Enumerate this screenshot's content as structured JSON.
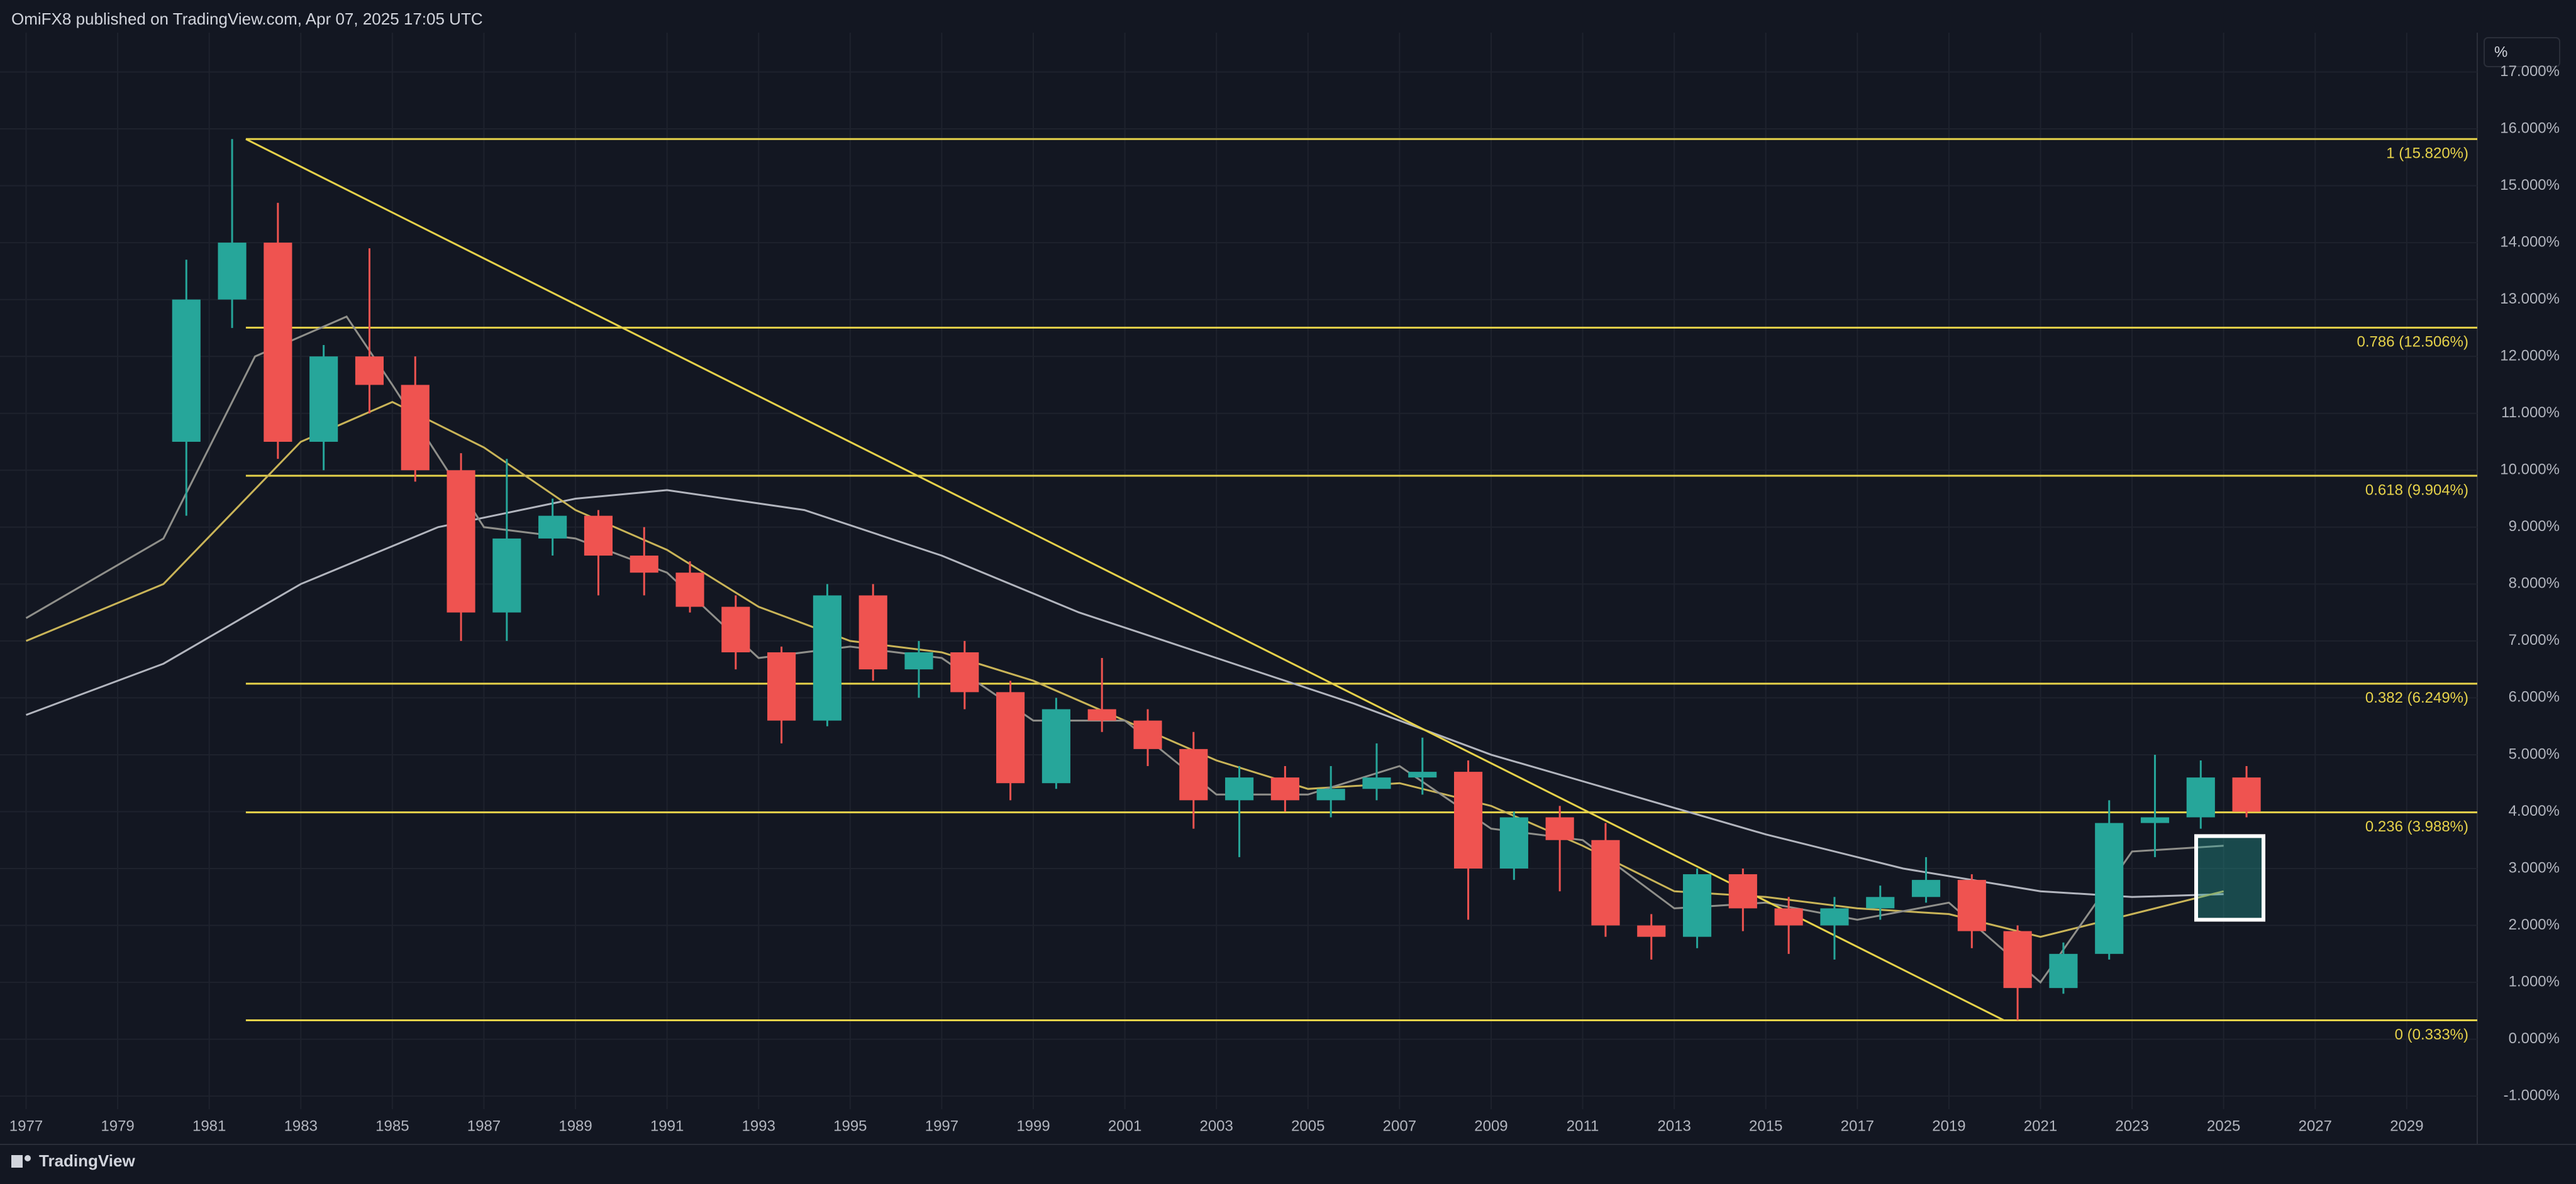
{
  "header": {
    "text": "OmiFX8 published on TradingView.com, Apr 07, 2025 17:05 UTC"
  },
  "footer": {
    "text": "TradingView"
  },
  "chart_data": {
    "type": "candlestick",
    "unit": "%",
    "up_color": "#26a69a",
    "down_color": "#ef5350",
    "x": [
      1980,
      1981,
      1982,
      1983,
      1984,
      1985,
      1986,
      1987,
      1988,
      1989,
      1990,
      1991,
      1992,
      1993,
      1994,
      1995,
      1996,
      1997,
      1998,
      1999,
      2000,
      2001,
      2002,
      2003,
      2004,
      2005,
      2006,
      2007,
      2008,
      2009,
      2010,
      2011,
      2012,
      2013,
      2014,
      2015,
      2016,
      2017,
      2018,
      2019,
      2020,
      2021,
      2022,
      2023,
      2024,
      2025
    ],
    "open": [
      10.5,
      13,
      14,
      10.5,
      12,
      11.5,
      10,
      7.5,
      8.8,
      9.2,
      8.5,
      8.2,
      7.6,
      6.8,
      5.6,
      7.8,
      6.5,
      6.8,
      6.1,
      4.5,
      5.8,
      5.6,
      5.1,
      4.2,
      4.6,
      4.2,
      4.4,
      4.6,
      4.7,
      3.0,
      3.9,
      3.5,
      2.0,
      1.8,
      2.9,
      2.3,
      2.0,
      2.3,
      2.5,
      2.8,
      1.9,
      0.9,
      1.5,
      3.8,
      3.9,
      4.6
    ],
    "high": [
      13.7,
      15.82,
      14.7,
      12.2,
      13.9,
      12,
      10.3,
      10.2,
      9.5,
      9.3,
      9,
      8.4,
      7.8,
      6.9,
      8,
      8,
      7,
      7,
      6.3,
      6,
      6.7,
      5.8,
      5.4,
      4.8,
      4.8,
      4.8,
      5.2,
      5.3,
      4.9,
      4.0,
      4.1,
      3.8,
      2.2,
      3.0,
      3.0,
      2.5,
      2.5,
      2.7,
      3.2,
      2.9,
      2.0,
      1.7,
      4.2,
      5.0,
      4.9,
      4.8
    ],
    "low": [
      9.2,
      12.5,
      10.2,
      10,
      11,
      9.8,
      7,
      7,
      8.5,
      7.8,
      7.8,
      7.5,
      6.5,
      5.2,
      5.5,
      6.3,
      6,
      5.8,
      4.2,
      4.4,
      5.4,
      4.8,
      3.7,
      3.2,
      4,
      3.9,
      4.2,
      4.3,
      2.1,
      2.8,
      2.6,
      1.8,
      1.4,
      1.6,
      1.9,
      1.5,
      1.4,
      2.1,
      2.4,
      1.6,
      0.333,
      0.8,
      1.4,
      3.2,
      3.7,
      3.9
    ],
    "close": [
      13,
      14,
      10.5,
      12,
      11.5,
      10,
      7.5,
      8.8,
      9.2,
      8.5,
      8.2,
      7.6,
      6.8,
      5.6,
      7.8,
      6.5,
      6.8,
      6.1,
      4.5,
      5.8,
      5.6,
      5.1,
      4.2,
      4.6,
      4.2,
      4.4,
      4.6,
      4.7,
      3.0,
      3.9,
      3.5,
      2.0,
      1.8,
      2.9,
      2.3,
      2.0,
      2.3,
      2.5,
      2.8,
      1.9,
      0.9,
      1.5,
      3.8,
      3.9,
      4.6,
      4.0
    ],
    "series": [
      {
        "color": "#b2b5be",
        "x": [
          1977,
          1980,
          1983,
          1986,
          1989,
          1991,
          1994,
          1997,
          2000,
          2003,
          2006,
          2009,
          2012,
          2015,
          2018,
          2021,
          2023,
          2025
        ],
        "values": [
          5.7,
          6.6,
          8.0,
          9.0,
          9.5,
          9.65,
          9.3,
          8.5,
          7.5,
          6.7,
          5.9,
          5.0,
          4.3,
          3.6,
          3.0,
          2.6,
          2.5,
          2.55
        ]
      },
      {
        "color": "#c9b458",
        "x": [
          1977,
          1980,
          1983,
          1985,
          1987,
          1989,
          1991,
          1993,
          1995,
          1997,
          1999,
          2001,
          2003,
          2005,
          2007,
          2009,
          2011,
          2013,
          2015,
          2017,
          2019,
          2021,
          2023,
          2025
        ],
        "values": [
          7.0,
          8.0,
          10.5,
          11.2,
          10.4,
          9.3,
          8.6,
          7.6,
          7.0,
          6.8,
          6.3,
          5.6,
          4.9,
          4.4,
          4.5,
          4.1,
          3.4,
          2.6,
          2.5,
          2.3,
          2.2,
          1.8,
          2.2,
          2.6
        ]
      },
      {
        "color": "#8f8f8a",
        "x": [
          1977,
          1980,
          1982,
          1984,
          1985,
          1987,
          1989,
          1991,
          1993,
          1995,
          1997,
          1999,
          2001,
          2003,
          2005,
          2007,
          2009,
          2011,
          2013,
          2015,
          2017,
          2019,
          2021,
          2023,
          2025
        ],
        "values": [
          7.4,
          8.8,
          12,
          12.7,
          11.5,
          9,
          8.8,
          8.2,
          6.7,
          6.9,
          6.7,
          5.6,
          5.6,
          4.3,
          4.3,
          4.8,
          3.7,
          3.5,
          2.3,
          2.4,
          2.1,
          2.4,
          1.0,
          3.3,
          3.4
        ]
      }
    ],
    "fib_start_x": 1981.8,
    "fib_color": "#e6d24a",
    "fib_levels": [
      {
        "value": 15.82,
        "label": "1 (15.820%)"
      },
      {
        "value": 12.506,
        "label": "0.786 (12.506%)"
      },
      {
        "value": 9.904,
        "label": "0.618 (9.904%)"
      },
      {
        "value": 6.249,
        "label": "0.382 (6.249%)"
      },
      {
        "value": 3.988,
        "label": "0.236 (3.988%)"
      },
      {
        "value": 0.333,
        "label": "0 (0.333%)"
      }
    ],
    "trend_line": {
      "x": [
        1981.8,
        2020.2
      ],
      "y": [
        15.82,
        0.333
      ]
    },
    "highlight_box": {
      "x": [
        2024.4,
        2025.87
      ],
      "y": [
        2.1,
        3.57
      ]
    },
    "xlim": [
      1976.43,
      2030.54
    ],
    "xticks": [
      1977,
      1979,
      1981,
      1983,
      1985,
      1987,
      1989,
      1991,
      1993,
      1995,
      1997,
      1999,
      2001,
      2003,
      2005,
      2007,
      2009,
      2011,
      2013,
      2015,
      2017,
      2019,
      2021,
      2023,
      2025,
      2027,
      2029
    ],
    "ylim": [
      -1.23,
      17.69
    ],
    "yticks": [
      {
        "value": -1,
        "label": "-1.000%"
      },
      {
        "value": 0,
        "label": "0.000%"
      },
      {
        "value": 1,
        "label": "1.000%"
      },
      {
        "value": 2,
        "label": "2.000%"
      },
      {
        "value": 3,
        "label": "3.000%"
      },
      {
        "value": 4,
        "label": "4.000%"
      },
      {
        "value": 5,
        "label": "5.000%"
      },
      {
        "value": 6,
        "label": "6.000%"
      },
      {
        "value": 7,
        "label": "7.000%"
      },
      {
        "value": 8,
        "label": "8.000%"
      },
      {
        "value": 9,
        "label": "9.000%"
      },
      {
        "value": 10,
        "label": "10.000%"
      },
      {
        "value": 11,
        "label": "11.000%"
      },
      {
        "value": 12,
        "label": "12.000%"
      },
      {
        "value": 13,
        "label": "13.000%"
      },
      {
        "value": 14,
        "label": "14.000%"
      },
      {
        "value": 15,
        "label": "15.000%"
      },
      {
        "value": 16,
        "label": "16.000%"
      },
      {
        "value": 17,
        "label": "17.000%"
      }
    ],
    "grid": true
  }
}
